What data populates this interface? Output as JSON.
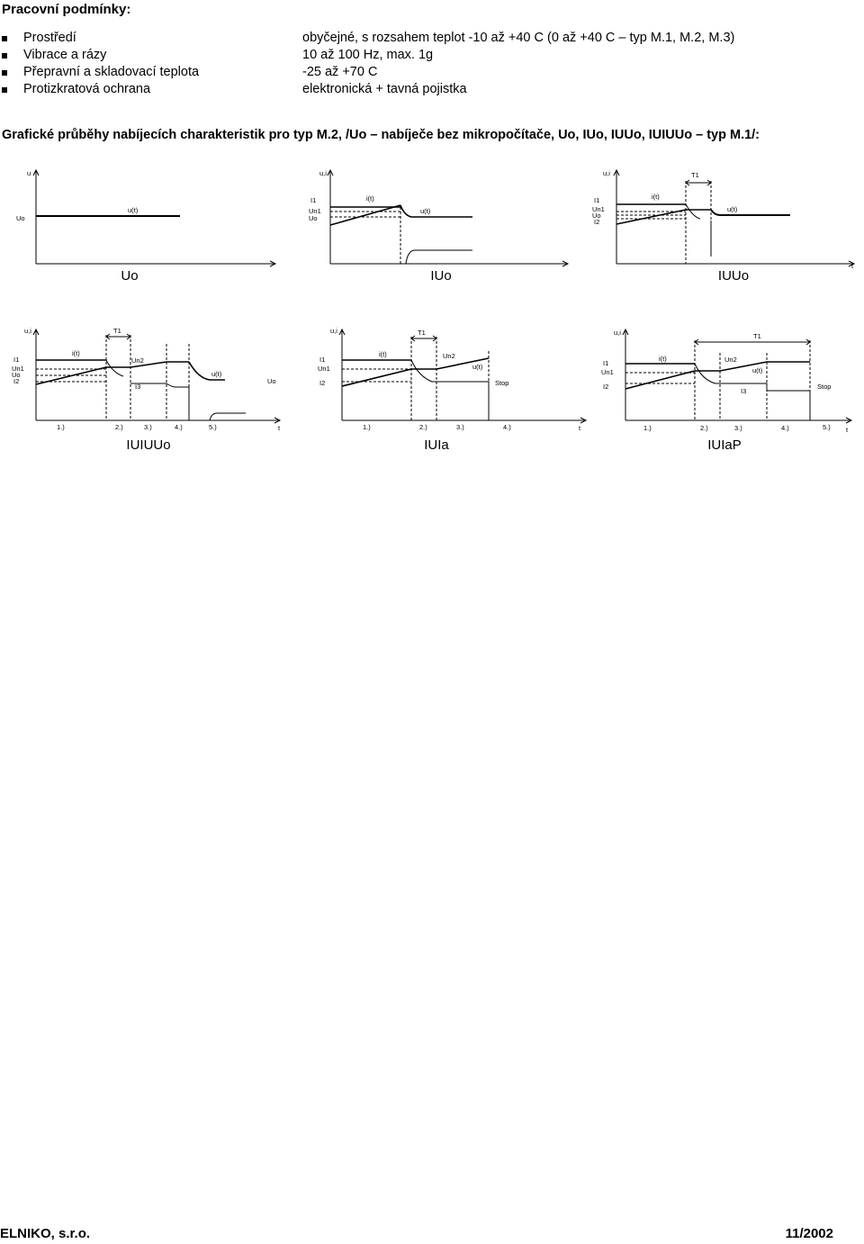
{
  "heading": "Pracovní podmínky:",
  "conditions": [
    {
      "label": "Prostředí",
      "value": "obyčejné, s rozsahem teplot -10 až +40 C (0 až +40 C – typ M.1, M.2, M.3)"
    },
    {
      "label": "Vibrace a rázy",
      "value": "10 až 100 Hz, max. 1g"
    },
    {
      "label": "Přepravní a skladovací teplota",
      "value": "-25 až +70 C"
    },
    {
      "label": "Protizkratová ochrana",
      "value": "elektronická + tavná pojistka"
    }
  ],
  "subheading": "Grafické průběhy nabíjecích charakteristik pro typ M.2, /Uo – nabíječe bez mikropočítače, Uo, IUo, IUUo, IUIUUo – typ M.1/:",
  "diagrams": [
    {
      "caption": "Uo",
      "labels": {
        "axis_y": "u",
        "uo": "Uo",
        "u_t": "u(t)"
      }
    },
    {
      "caption": "IUo",
      "labels": {
        "axis_y": "u,i",
        "i1": "I1",
        "un1": "Un1",
        "uo": "Uo",
        "i_t": "i(t)",
        "u_t": "u(t)"
      }
    },
    {
      "caption": "IUUo",
      "labels": {
        "axis_y": "u,i",
        "t1": "T1",
        "i1": "I1",
        "un1": "Un1",
        "uo": "Uo",
        "i2": "I2",
        "i_t": "i(t)",
        "u_t": "u(t)",
        "axis_t": "t"
      }
    },
    {
      "caption": "IUIUUo",
      "labels": {
        "axis_y": "u,i",
        "t1": "T1",
        "i1": "I1",
        "un1": "Un1",
        "uo": "Uo",
        "i2": "I2",
        "i_t": "i(t)",
        "un2": "Un2",
        "i3": "I3",
        "u_t": "u(t)",
        "uo2": "Uo",
        "p1": "1.)",
        "p2": "2.)",
        "p3": "3.)",
        "p4": "4.)",
        "p5": "5.)",
        "axis_t": "t"
      }
    },
    {
      "caption": "IUIa",
      "labels": {
        "axis_y": "u,i",
        "t1": "T1",
        "i1": "I1",
        "un1": "Un1",
        "i2": "I2",
        "i_t": "i(t)",
        "un2": "Un2",
        "u_t": "u(t)",
        "stop": "Stop",
        "p1": "1.)",
        "p2": "2.)",
        "p3": "3.)",
        "p4": "4.)",
        "axis_t": "t"
      }
    },
    {
      "caption": "IUIaP",
      "labels": {
        "axis_y": "u,i",
        "t1": "T1",
        "i1": "I1",
        "un1": "Un1",
        "i2": "I2",
        "i_t": "i(t)",
        "un2": "Un2",
        "i3": "I3",
        "u_t": "u(t)",
        "stop": "Stop",
        "p1": "1.)",
        "p2": "2.)",
        "p3": "3.)",
        "p4": "4.)",
        "p5": "5.)",
        "axis_t": "t"
      }
    }
  ],
  "footer": {
    "company": "ELNIKO, s.r.o.",
    "date": "11/2002"
  }
}
